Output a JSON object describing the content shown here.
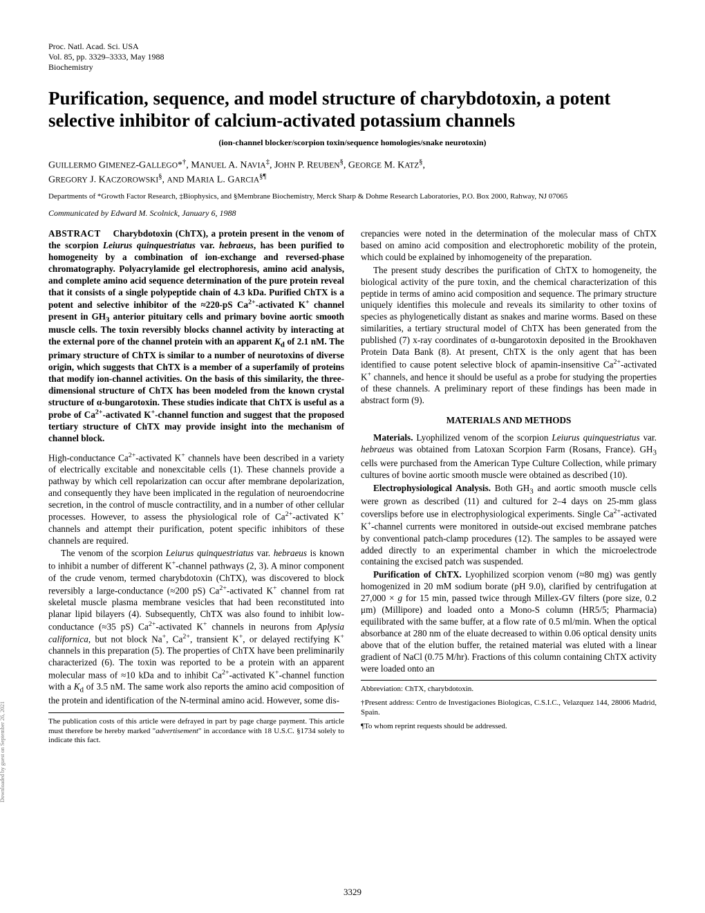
{
  "header": {
    "line1": "Proc. Natl. Acad. Sci. USA",
    "line2": "Vol. 85, pp. 3329–3333, May 1988",
    "line3": "Biochemistry"
  },
  "title": "Purification, sequence, and model structure of charybdotoxin, a potent selective inhibitor of calcium-activated potassium channels",
  "subtitle": "(ion-channel blocker/scorpion toxin/sequence homologies/snake neurotoxin)",
  "authors_html": "Guillermo Gimenez-Gallego*<sup>†</sup>, Manuel A. Navia<sup>‡</sup>, John P. Reuben<sup>§</sup>, George M. Katz<sup>§</sup>, Gregory J. Kaczorowski<sup>§</sup>, and Maria L. Garcia<sup>§¶</sup>",
  "affiliation": "Departments of *Growth Factor Research, ‡Biophysics, and §Membrane Biochemistry, Merck Sharp & Dohme Research Laboratories, P.O. Box 2000, Rahway, NJ 07065",
  "communicated": "Communicated by Edward M. Scolnick, January 6, 1988",
  "abstract_label": "ABSTRACT",
  "abstract_body": "Charybdotoxin (ChTX), a protein present in the venom of the scorpion Leiurus quinquestriatus var. hebraeus, has been purified to homogeneity by a combination of ion-exchange and reversed-phase chromatography. Polyacrylamide gel electrophoresis, amino acid analysis, and complete amino acid sequence determination of the pure protein reveal that it consists of a single polypeptide chain of 4.3 kDa. Purified ChTX is a potent and selective inhibitor of the ≈220-pS Ca²⁺-activated K⁺ channel present in GH₃ anterior pituitary cells and primary bovine aortic smooth muscle cells. The toxin reversibly blocks channel activity by interacting at the external pore of the channel protein with an apparent K_d of 2.1 nM. The primary structure of ChTX is similar to a number of neurotoxins of diverse origin, which suggests that ChTX is a member of a superfamily of proteins that modify ion-channel activities. On the basis of this similarity, the three-dimensional structure of ChTX has been modeled from the known crystal structure of α-bungarotoxin. These studies indicate that ChTX is useful as a probe of Ca²⁺-activated K⁺-channel function and suggest that the proposed tertiary structure of ChTX may provide insight into the mechanism of channel block.",
  "intro_p1": "High-conductance Ca²⁺-activated K⁺ channels have been described in a variety of electrically excitable and nonexcitable cells (1). These channels provide a pathway by which cell repolarization can occur after membrane depolarization, and consequently they have been implicated in the regulation of neuroendocrine secretion, in the control of muscle contractility, and in a number of other cellular processes. However, to assess the physiological role of Ca²⁺-activated K⁺ channels and attempt their purification, potent specific inhibitors of these channels are required.",
  "intro_p2": "The venom of the scorpion Leiurus quinquestriatus var. hebraeus is known to inhibit a number of different K⁺-channel pathways (2, 3). A minor component of the crude venom, termed charybdotoxin (ChTX), was discovered to block reversibly a large-conductance (≈200 pS) Ca²⁺-activated K⁺ channel from rat skeletal muscle plasma membrane vesicles that had been reconstituted into planar lipid bilayers (4). Subsequently, ChTX was also found to inhibit low-conductance (≈35 pS) Ca²⁺-activated K⁺ channels in neurons from Aplysia californica, but not block Na⁺, Ca²⁺, transient K⁺, or delayed rectifying K⁺ channels in this preparation (5). The properties of ChTX have been preliminarily characterized (6). The toxin was reported to be a protein with an apparent molecular mass of ≈10 kDa and to inhibit Ca²⁺-activated K⁺-channel function with a K_d of 3.5 nM. The same work also reports the amino acid composition of the protein and identification of the N-terminal amino acid. However, some dis",
  "right_p1": "crepancies were noted in the determination of the molecular mass of ChTX based on amino acid composition and electrophoretic mobility of the protein, which could be explained by inhomogeneity of the preparation.",
  "right_p2": "The present study describes the purification of ChTX to homogeneity, the biological activity of the pure toxin, and the chemical characterization of this peptide in terms of amino acid composition and sequence. The primary structure uniquely identifies this molecule and reveals its similarity to other toxins of species as phylogenetically distant as snakes and marine worms. Based on these similarities, a tertiary structural model of ChTX has been generated from the published (7) x-ray coordinates of α-bungarotoxin deposited in the Brookhaven Protein Data Bank (8). At present, ChTX is the only agent that has been identified to cause potent selective block of apamin-insensitive Ca²⁺-activated K⁺ channels, and hence it should be useful as a probe for studying the properties of these channels. A preliminary report of these findings has been made in abstract form (9).",
  "methods_head": "MATERIALS AND METHODS",
  "methods_materials_label": "Materials.",
  "methods_materials": " Lyophilized venom of the scorpion Leiurus quinquestriatus var. hebraeus was obtained from Latoxan Scorpion Farm (Rosans, France). GH₃ cells were purchased from the American Type Culture Collection, while primary cultures of bovine aortic smooth muscle were obtained as described (10).",
  "methods_electro_label": "Electrophysiological Analysis.",
  "methods_electro": " Both GH₃ and aortic smooth muscle cells were grown as described (11) and cultured for 2–4 days on 25-mm glass coverslips before use in electrophysiological experiments. Single Ca²⁺-activated K⁺-channel currents were monitored in outside-out excised membrane patches by conventional patch-clamp procedures (12). The samples to be assayed were added directly to an experimental chamber in which the microelectrode containing the excised patch was suspended.",
  "methods_purif_label": "Purification of ChTX.",
  "methods_purif": " Lyophilized scorpion venom (≈80 mg) was gently homogenized in 20 mM sodium borate (pH 9.0), clarified by centrifugation at 27,000 × g for 15 min, passed twice through Millex-GV filters (pore size, 0.2 μm) (Millipore) and loaded onto a Mono-S column (HR5/5; Pharmacia) equilibrated with the same buffer, at a flow rate of 0.5 ml/min. When the optical absorbance at 280 nm of the eluate decreased to within 0.06 optical density units above that of the elution buffer, the retained material was eluted with a linear gradient of NaCl (0.75 M/hr). Fractions of this column containing ChTX activity were loaded onto an",
  "pubcosts": "The publication costs of this article were defrayed in part by page charge payment. This article must therefore be hereby marked “advertisement” in accordance with 18 U.S.C. §1734 solely to indicate this fact.",
  "abbrev": "Abbreviation: ChTX, charybdotoxin.",
  "present_addr": "†Present address: Centro de Investigaciones Biologicas, C.S.I.C., Velazquez 144, 28006 Madrid, Spain.",
  "reprint": "¶To whom reprint requests should be addressed.",
  "page_num": "3329",
  "side_text": "Downloaded by guest on September 26, 2021"
}
